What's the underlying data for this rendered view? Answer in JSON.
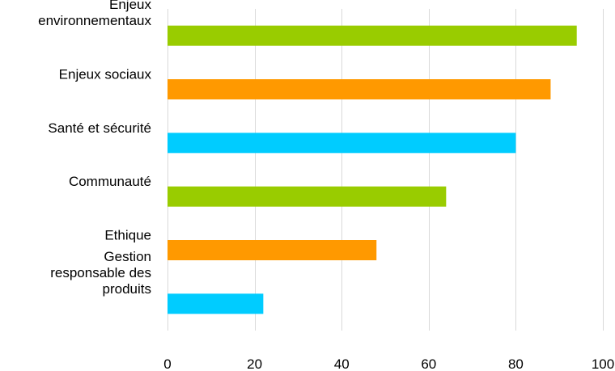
{
  "chart_data": {
    "type": "bar",
    "orientation": "horizontal",
    "categories": [
      [
        "Enjeux",
        "environnementaux"
      ],
      [
        "Enjeux sociaux"
      ],
      [
        "Santé et sécurité"
      ],
      [
        "Communauté"
      ],
      [
        "Ethique"
      ],
      [
        "Gestion",
        "responsable des",
        "produits"
      ]
    ],
    "values": [
      94,
      88,
      80,
      64,
      48,
      22
    ],
    "colors": [
      "#99cc00",
      "#ff9900",
      "#00ccff",
      "#99cc00",
      "#ff9900",
      "#00ccff"
    ],
    "xlim": [
      0,
      100
    ],
    "xticks": [
      0,
      20,
      40,
      60,
      80,
      100
    ],
    "grid": true,
    "title": "",
    "xlabel": "",
    "ylabel": ""
  }
}
